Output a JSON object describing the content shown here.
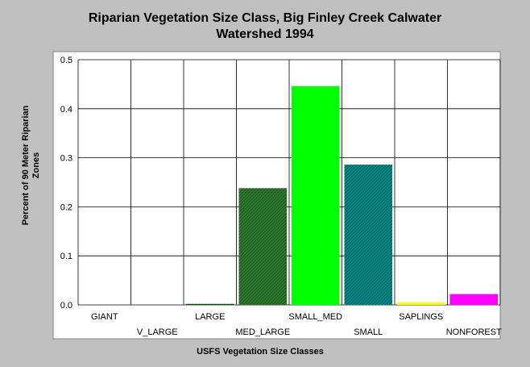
{
  "chart_data": {
    "type": "bar",
    "title_lines": [
      "Riparian Vegetation Size Class, Big Finley Creek Calwater",
      "Watershed 1994"
    ],
    "xlabel": "USFS Vegetation Size Classes",
    "ylabel_lines": [
      "Percent of 90 Meter Riparian",
      "Zones"
    ],
    "ylim": [
      0,
      0.5
    ],
    "yticks": [
      "0.0",
      "0.1",
      "0.2",
      "0.3",
      "0.4",
      "0.5"
    ],
    "categories": [
      "GIANT",
      "V_LARGE",
      "LARGE",
      "MED_LARGE",
      "SMALL_MED",
      "SMALL",
      "SAPLINGS",
      "NONFOREST"
    ],
    "values": [
      0,
      0,
      0.002,
      0.238,
      0.446,
      0.286,
      0.005,
      0.022
    ],
    "colors": [
      "#808080",
      "#808080",
      "#006400",
      "#2e7d2e",
      "#00ff00",
      "#008b8b",
      "#ffff00",
      "#ff00ff"
    ],
    "hatched": [
      false,
      false,
      true,
      true,
      false,
      true,
      false,
      false
    ],
    "grid": true
  }
}
